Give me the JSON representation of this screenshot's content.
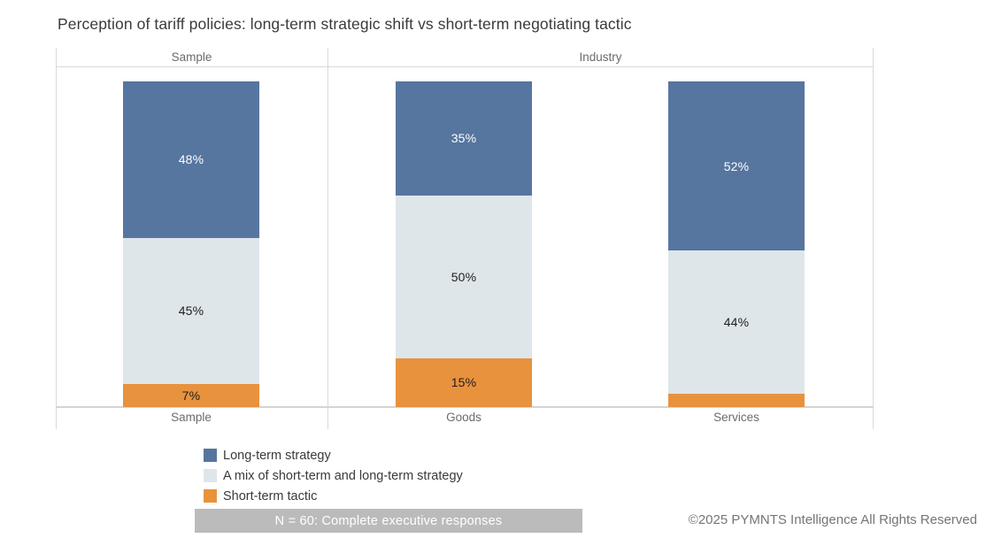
{
  "title": "Perception of tariff policies: long-term strategic shift vs short-term negotiating tactic",
  "footnote": "N = 60: Complete executive responses",
  "copyright": "©2025 PYMNTS Intelligence All Rights Reserved",
  "colors": {
    "long_term_blue": "#56759f",
    "mix_gray": "#dee6ea",
    "short_term_orange": "#e8923d",
    "footnote_bg": "#bbbbbb",
    "footnote_text": "#ffffff",
    "border": "#d9d9d9",
    "muted_text": "#6b6b6b",
    "label_on_dark": "#ffffff",
    "label_on_light": "#1e1e1e"
  },
  "chart_data": {
    "type": "bar",
    "subtype": "stacked-100-percent-column",
    "title": "Perception of tariff policies: long-term strategic shift vs short-term negotiating tactic",
    "panels": [
      {
        "label": "Sample",
        "categories": [
          "Sample"
        ]
      },
      {
        "label": "Industry",
        "categories": [
          "Goods",
          "Services"
        ]
      }
    ],
    "categories": [
      "Sample",
      "Goods",
      "Services"
    ],
    "series": [
      {
        "name": "Long-term strategy",
        "color": "#56759f",
        "values": [
          48,
          35,
          52
        ],
        "labels": [
          "48%",
          "35%",
          "52%"
        ]
      },
      {
        "name": "A mix of short-term and long-term strategy",
        "color": "#dee6ea",
        "values": [
          45,
          50,
          44
        ],
        "labels": [
          "45%",
          "50%",
          "44%"
        ]
      },
      {
        "name": "Short-term tactic",
        "color": "#e8923d",
        "values": [
          7,
          15,
          4
        ],
        "labels": [
          "7%",
          "15%",
          ""
        ]
      }
    ],
    "value_format": "percent",
    "ylim": [
      0,
      100
    ],
    "grid": false,
    "axes_hidden": true,
    "legend_position": "bottom-left"
  },
  "legend": [
    {
      "label": "Long-term strategy",
      "color": "#56759f"
    },
    {
      "label": "A mix of short-term and long-term strategy",
      "color": "#dee6ea"
    },
    {
      "label": "Short-term tactic",
      "color": "#e8923d"
    }
  ]
}
